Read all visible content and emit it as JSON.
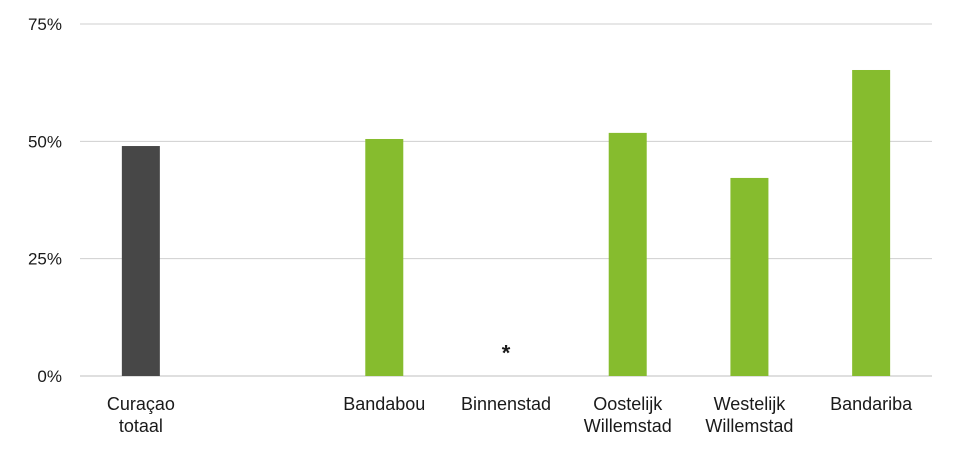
{
  "chart_data": {
    "type": "bar",
    "categories": [
      [
        "Curaçao",
        "totaal"
      ],
      [],
      [
        "Bandabou"
      ],
      [
        "Binnenstad"
      ],
      [
        "Oostelijk",
        "Willemstad"
      ],
      [
        "Westelijk",
        "Willemstad"
      ],
      [
        "Bandariba"
      ]
    ],
    "values": [
      49,
      null,
      50.5,
      null,
      51.8,
      42.2,
      65.2
    ],
    "bar_colors": [
      "#474747",
      null,
      "#86bc2e",
      null,
      "#86bc2e",
      "#86bc2e",
      "#86bc2e"
    ],
    "annotations": [
      {
        "category_index": 3,
        "text": "*",
        "value": 5
      }
    ],
    "title": "",
    "xlabel": "",
    "ylabel": "",
    "ylim": [
      0,
      75
    ],
    "yticks": [
      0,
      25,
      50,
      75
    ],
    "ytick_labels": [
      "0%",
      "25%",
      "50%",
      "75%"
    ],
    "grid": true,
    "legend": "none"
  }
}
